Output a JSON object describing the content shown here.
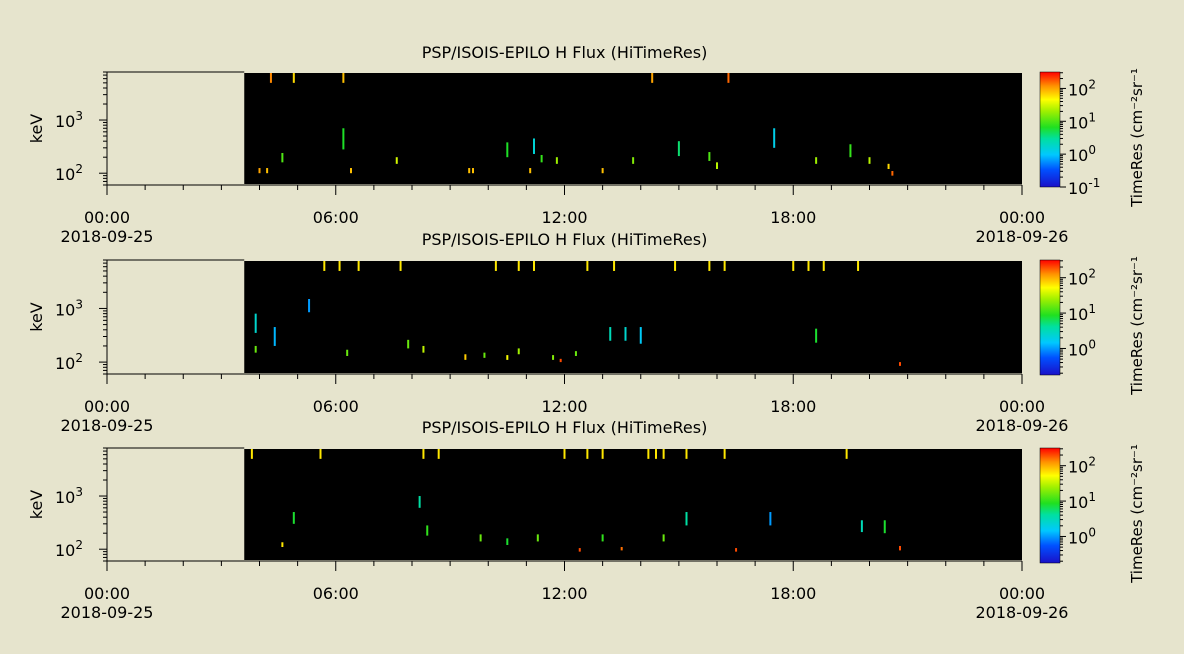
{
  "colors": {
    "background": "#e6e4cd",
    "plot_fill": "#000000",
    "axis": "#000000"
  },
  "chart_data": [
    {
      "type": "heatmap",
      "title": "PSP/ISOIS-EPILO  H Flux (HiTimeRes)",
      "ylabel": "keV",
      "yscale": "log",
      "ylim": [
        60,
        8000
      ],
      "y_ticks": [
        {
          "value": 100,
          "base": "10",
          "exp": "2"
        },
        {
          "value": 1000,
          "base": "10",
          "exp": "3"
        }
      ],
      "x_ticks": [
        {
          "time": "00:00",
          "date": "2018-09-25"
        },
        {
          "time": "06:00",
          "date": ""
        },
        {
          "time": "12:00",
          "date": ""
        },
        {
          "time": "18:00",
          "date": ""
        },
        {
          "time": "00:00",
          "date": "2018-09-26"
        }
      ],
      "xlim_hours": [
        0,
        24
      ],
      "data_start_hour": 3.6,
      "data_end_hour": 24.0,
      "colorbar": {
        "label": "TimeRes (cm⁻²sr⁻¹",
        "scale": "log",
        "range_exp": [
          -1,
          2.5
        ],
        "ticks": [
          {
            "base": "10",
            "exp": "2"
          },
          {
            "base": "10",
            "exp": "1"
          },
          {
            "base": "10",
            "exp": "0"
          },
          {
            "base": "10",
            "exp": "-1"
          }
        ]
      },
      "events": [
        {
          "hour": 4.3,
          "e_lo": 5000,
          "e_hi": 8000,
          "logflux": 2.1
        },
        {
          "hour": 4.9,
          "e_lo": 5000,
          "e_hi": 8000,
          "logflux": 1.8
        },
        {
          "hour": 6.2,
          "e_lo": 5000,
          "e_hi": 8000,
          "logflux": 1.9
        },
        {
          "hour": 14.3,
          "e_lo": 5000,
          "e_hi": 8000,
          "logflux": 2.0
        },
        {
          "hour": 16.3,
          "e_lo": 5000,
          "e_hi": 8000,
          "logflux": 2.2
        },
        {
          "hour": 4.6,
          "e_lo": 160,
          "e_hi": 240,
          "logflux": 1.0
        },
        {
          "hour": 6.2,
          "e_lo": 280,
          "e_hi": 700,
          "logflux": 0.8
        },
        {
          "hour": 10.5,
          "e_lo": 200,
          "e_hi": 380,
          "logflux": 0.8
        },
        {
          "hour": 11.2,
          "e_lo": 230,
          "e_hi": 450,
          "logflux": 0.2
        },
        {
          "hour": 15.0,
          "e_lo": 210,
          "e_hi": 400,
          "logflux": 0.6
        },
        {
          "hour": 17.5,
          "e_lo": 300,
          "e_hi": 700,
          "logflux": 0.1
        },
        {
          "hour": 19.5,
          "e_lo": 200,
          "e_hi": 350,
          "logflux": 0.9
        },
        {
          "hour": 7.6,
          "e_lo": 150,
          "e_hi": 200,
          "logflux": 1.5
        },
        {
          "hour": 11.4,
          "e_lo": 160,
          "e_hi": 220,
          "logflux": 0.9
        },
        {
          "hour": 11.8,
          "e_lo": 150,
          "e_hi": 200,
          "logflux": 1.3
        },
        {
          "hour": 13.8,
          "e_lo": 150,
          "e_hi": 200,
          "logflux": 1.2
        },
        {
          "hour": 15.8,
          "e_lo": 170,
          "e_hi": 250,
          "logflux": 1.0
        },
        {
          "hour": 16.0,
          "e_lo": 120,
          "e_hi": 160,
          "logflux": 1.4
        },
        {
          "hour": 18.6,
          "e_lo": 150,
          "e_hi": 200,
          "logflux": 1.3
        },
        {
          "hour": 20.0,
          "e_lo": 150,
          "e_hi": 200,
          "logflux": 1.4
        },
        {
          "hour": 20.5,
          "e_lo": 120,
          "e_hi": 150,
          "logflux": 1.8
        },
        {
          "hour": 4.0,
          "e_lo": 100,
          "e_hi": 125,
          "logflux": 2.0
        },
        {
          "hour": 4.2,
          "e_lo": 100,
          "e_hi": 125,
          "logflux": 1.9
        },
        {
          "hour": 6.4,
          "e_lo": 100,
          "e_hi": 125,
          "logflux": 1.9
        },
        {
          "hour": 9.5,
          "e_lo": 100,
          "e_hi": 125,
          "logflux": 1.9
        },
        {
          "hour": 9.6,
          "e_lo": 100,
          "e_hi": 125,
          "logflux": 1.9
        },
        {
          "hour": 11.1,
          "e_lo": 100,
          "e_hi": 125,
          "logflux": 1.9
        },
        {
          "hour": 13.0,
          "e_lo": 100,
          "e_hi": 125,
          "logflux": 1.9
        },
        {
          "hour": 20.6,
          "e_lo": 90,
          "e_hi": 110,
          "logflux": 2.2
        }
      ]
    },
    {
      "type": "heatmap",
      "title": "PSP/ISOIS-EPILO  H Flux (HiTimeRes)",
      "ylabel": "keV",
      "yscale": "log",
      "ylim": [
        60,
        8000
      ],
      "y_ticks": [
        {
          "value": 100,
          "base": "10",
          "exp": "2"
        },
        {
          "value": 1000,
          "base": "10",
          "exp": "3"
        }
      ],
      "x_ticks": [
        {
          "time": "00:00",
          "date": "2018-09-25"
        },
        {
          "time": "06:00",
          "date": ""
        },
        {
          "time": "12:00",
          "date": ""
        },
        {
          "time": "18:00",
          "date": ""
        },
        {
          "time": "00:00",
          "date": "2018-09-26"
        }
      ],
      "xlim_hours": [
        0,
        24
      ],
      "data_start_hour": 3.6,
      "data_end_hour": 24.0,
      "colorbar": {
        "label": "TimeRes (cm⁻²sr⁻¹",
        "scale": "log",
        "range_exp": [
          -0.75,
          2.5
        ],
        "ticks": [
          {
            "base": "10",
            "exp": "2"
          },
          {
            "base": "10",
            "exp": "1"
          },
          {
            "base": "10",
            "exp": "0"
          }
        ]
      },
      "events": [
        {
          "hour": 5.7,
          "e_lo": 5000,
          "e_hi": 8000,
          "logflux": 1.8
        },
        {
          "hour": 6.1,
          "e_lo": 5000,
          "e_hi": 8000,
          "logflux": 1.8
        },
        {
          "hour": 6.6,
          "e_lo": 5000,
          "e_hi": 8000,
          "logflux": 1.8
        },
        {
          "hour": 7.7,
          "e_lo": 5000,
          "e_hi": 8000,
          "logflux": 1.8
        },
        {
          "hour": 10.2,
          "e_lo": 5000,
          "e_hi": 8000,
          "logflux": 1.8
        },
        {
          "hour": 10.8,
          "e_lo": 5000,
          "e_hi": 8000,
          "logflux": 1.8
        },
        {
          "hour": 11.2,
          "e_lo": 5000,
          "e_hi": 8000,
          "logflux": 1.8
        },
        {
          "hour": 12.6,
          "e_lo": 5000,
          "e_hi": 8000,
          "logflux": 1.8
        },
        {
          "hour": 13.3,
          "e_lo": 5000,
          "e_hi": 8000,
          "logflux": 1.8
        },
        {
          "hour": 14.9,
          "e_lo": 5000,
          "e_hi": 8000,
          "logflux": 1.8
        },
        {
          "hour": 15.8,
          "e_lo": 5000,
          "e_hi": 8000,
          "logflux": 1.8
        },
        {
          "hour": 16.2,
          "e_lo": 5000,
          "e_hi": 8000,
          "logflux": 1.8
        },
        {
          "hour": 18.0,
          "e_lo": 5000,
          "e_hi": 8000,
          "logflux": 1.8
        },
        {
          "hour": 18.4,
          "e_lo": 5000,
          "e_hi": 8000,
          "logflux": 1.8
        },
        {
          "hour": 18.8,
          "e_lo": 5000,
          "e_hi": 8000,
          "logflux": 1.8
        },
        {
          "hour": 19.7,
          "e_lo": 5000,
          "e_hi": 8000,
          "logflux": 1.8
        },
        {
          "hour": 5.3,
          "e_lo": 850,
          "e_hi": 1500,
          "logflux": 0.0
        },
        {
          "hour": 4.4,
          "e_lo": 200,
          "e_hi": 450,
          "logflux": 0.1
        },
        {
          "hour": 3.9,
          "e_lo": 350,
          "e_hi": 800,
          "logflux": 0.4
        },
        {
          "hour": 13.2,
          "e_lo": 250,
          "e_hi": 450,
          "logflux": 0.5
        },
        {
          "hour": 13.6,
          "e_lo": 250,
          "e_hi": 450,
          "logflux": 0.4
        },
        {
          "hour": 14.0,
          "e_lo": 220,
          "e_hi": 450,
          "logflux": 0.2
        },
        {
          "hour": 18.6,
          "e_lo": 230,
          "e_hi": 420,
          "logflux": 0.9
        },
        {
          "hour": 3.9,
          "e_lo": 150,
          "e_hi": 200,
          "logflux": 1.2
        },
        {
          "hour": 6.3,
          "e_lo": 130,
          "e_hi": 170,
          "logflux": 1.2
        },
        {
          "hour": 7.9,
          "e_lo": 180,
          "e_hi": 260,
          "logflux": 1.2
        },
        {
          "hour": 8.3,
          "e_lo": 150,
          "e_hi": 200,
          "logflux": 1.5
        },
        {
          "hour": 9.4,
          "e_lo": 110,
          "e_hi": 140,
          "logflux": 1.9
        },
        {
          "hour": 9.9,
          "e_lo": 120,
          "e_hi": 150,
          "logflux": 1.2
        },
        {
          "hour": 10.5,
          "e_lo": 110,
          "e_hi": 135,
          "logflux": 1.7
        },
        {
          "hour": 10.8,
          "e_lo": 140,
          "e_hi": 180,
          "logflux": 1.4
        },
        {
          "hour": 11.7,
          "e_lo": 110,
          "e_hi": 135,
          "logflux": 1.3
        },
        {
          "hour": 12.3,
          "e_lo": 130,
          "e_hi": 160,
          "logflux": 1.2
        },
        {
          "hour": 11.9,
          "e_lo": 100,
          "e_hi": 115,
          "logflux": 2.3
        },
        {
          "hour": 20.8,
          "e_lo": 85,
          "e_hi": 100,
          "logflux": 2.3
        }
      ]
    },
    {
      "type": "heatmap",
      "title": "PSP/ISOIS-EPILO  H Flux (HiTimeRes)",
      "ylabel": "keV",
      "yscale": "log",
      "ylim": [
        60,
        8000
      ],
      "y_ticks": [
        {
          "value": 100,
          "base": "10",
          "exp": "2"
        },
        {
          "value": 1000,
          "base": "10",
          "exp": "3"
        }
      ],
      "x_ticks": [
        {
          "time": "00:00",
          "date": "2018-09-25"
        },
        {
          "time": "06:00",
          "date": ""
        },
        {
          "time": "12:00",
          "date": ""
        },
        {
          "time": "18:00",
          "date": ""
        },
        {
          "time": "00:00",
          "date": "2018-09-26"
        }
      ],
      "xlim_hours": [
        0,
        24
      ],
      "data_start_hour": 3.6,
      "data_end_hour": 24.0,
      "colorbar": {
        "label": "TimeRes (cm⁻²sr⁻¹",
        "scale": "log",
        "range_exp": [
          -0.75,
          2.5
        ],
        "ticks": [
          {
            "base": "10",
            "exp": "2"
          },
          {
            "base": "10",
            "exp": "1"
          },
          {
            "base": "10",
            "exp": "0"
          }
        ]
      },
      "events": [
        {
          "hour": 3.8,
          "e_lo": 5000,
          "e_hi": 8000,
          "logflux": 1.8
        },
        {
          "hour": 5.6,
          "e_lo": 5000,
          "e_hi": 8000,
          "logflux": 1.8
        },
        {
          "hour": 8.3,
          "e_lo": 5000,
          "e_hi": 8000,
          "logflux": 1.8
        },
        {
          "hour": 8.7,
          "e_lo": 5000,
          "e_hi": 8000,
          "logflux": 1.8
        },
        {
          "hour": 12.0,
          "e_lo": 5000,
          "e_hi": 8000,
          "logflux": 1.8
        },
        {
          "hour": 12.6,
          "e_lo": 5000,
          "e_hi": 8000,
          "logflux": 1.8
        },
        {
          "hour": 13.0,
          "e_lo": 5000,
          "e_hi": 8000,
          "logflux": 1.8
        },
        {
          "hour": 14.2,
          "e_lo": 5000,
          "e_hi": 8000,
          "logflux": 1.8
        },
        {
          "hour": 14.4,
          "e_lo": 5000,
          "e_hi": 8000,
          "logflux": 1.8
        },
        {
          "hour": 14.6,
          "e_lo": 5000,
          "e_hi": 8000,
          "logflux": 1.8
        },
        {
          "hour": 15.2,
          "e_lo": 5000,
          "e_hi": 8000,
          "logflux": 1.8
        },
        {
          "hour": 16.2,
          "e_lo": 5000,
          "e_hi": 8000,
          "logflux": 1.8
        },
        {
          "hour": 19.4,
          "e_lo": 5000,
          "e_hi": 8000,
          "logflux": 1.8
        },
        {
          "hour": 8.2,
          "e_lo": 600,
          "e_hi": 1000,
          "logflux": 0.6
        },
        {
          "hour": 4.9,
          "e_lo": 300,
          "e_hi": 500,
          "logflux": 0.9
        },
        {
          "hour": 15.2,
          "e_lo": 280,
          "e_hi": 500,
          "logflux": 0.6
        },
        {
          "hour": 17.4,
          "e_lo": 280,
          "e_hi": 500,
          "logflux": 0.0
        },
        {
          "hour": 19.8,
          "e_lo": 210,
          "e_hi": 350,
          "logflux": 0.5
        },
        {
          "hour": 20.4,
          "e_lo": 200,
          "e_hi": 350,
          "logflux": 0.9
        },
        {
          "hour": 8.4,
          "e_lo": 180,
          "e_hi": 280,
          "logflux": 1.0
        },
        {
          "hour": 9.8,
          "e_lo": 140,
          "e_hi": 190,
          "logflux": 1.2
        },
        {
          "hour": 10.5,
          "e_lo": 120,
          "e_hi": 160,
          "logflux": 0.9
        },
        {
          "hour": 11.3,
          "e_lo": 140,
          "e_hi": 190,
          "logflux": 1.2
        },
        {
          "hour": 13.0,
          "e_lo": 140,
          "e_hi": 190,
          "logflux": 1.0
        },
        {
          "hour": 14.6,
          "e_lo": 140,
          "e_hi": 190,
          "logflux": 1.2
        },
        {
          "hour": 4.6,
          "e_lo": 110,
          "e_hi": 135,
          "logflux": 1.8
        },
        {
          "hour": 12.4,
          "e_lo": 90,
          "e_hi": 105,
          "logflux": 2.3
        },
        {
          "hour": 13.5,
          "e_lo": 95,
          "e_hi": 110,
          "logflux": 2.2
        },
        {
          "hour": 16.5,
          "e_lo": 90,
          "e_hi": 105,
          "logflux": 2.3
        },
        {
          "hour": 20.8,
          "e_lo": 95,
          "e_hi": 115,
          "logflux": 2.3
        }
      ]
    }
  ]
}
